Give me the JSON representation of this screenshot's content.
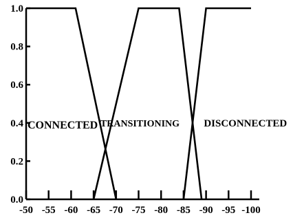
{
  "chart_data": {
    "type": "line",
    "title": "",
    "xlabel": "",
    "ylabel": "",
    "xlim": [
      -50,
      -100
    ],
    "ylim": [
      0,
      1.0
    ],
    "grid": false,
    "legend": "none",
    "x_ticks": [
      -50,
      -55,
      -60,
      -65,
      -70,
      -75,
      -80,
      -85,
      -90,
      -95,
      -100
    ],
    "x_tick_labels": [
      "-50",
      "-55",
      "-60",
      "-65",
      "-70",
      "-75",
      "-80",
      "-85",
      "-90",
      "-95",
      "-100"
    ],
    "y_ticks": [
      0.0,
      0.2,
      0.4,
      0.6,
      0.8,
      1.0
    ],
    "y_tick_labels": [
      "0.0",
      "0.2",
      "0.4",
      "0.6",
      "0.8",
      "1.0"
    ],
    "series": [
      {
        "x": [
          -50,
          -61,
          -70
        ],
        "y": [
          1.0,
          1.0,
          0.0
        ]
      },
      {
        "x": [
          -65,
          -75,
          -84,
          -89
        ],
        "y": [
          0.0,
          1.0,
          1.0,
          0.0
        ]
      },
      {
        "x": [
          -85,
          -90,
          -100
        ],
        "y": [
          0.0,
          1.0,
          1.0
        ]
      }
    ],
    "annotations": [
      {
        "text": "CONNECTED",
        "x": -50,
        "y": 0.4
      },
      {
        "text": "TRANSITIONING",
        "x": -66.5,
        "y": 0.41
      },
      {
        "text": "DISCONNECTED",
        "x": -89.5,
        "y": 0.41
      }
    ],
    "line_color": "#000000"
  }
}
